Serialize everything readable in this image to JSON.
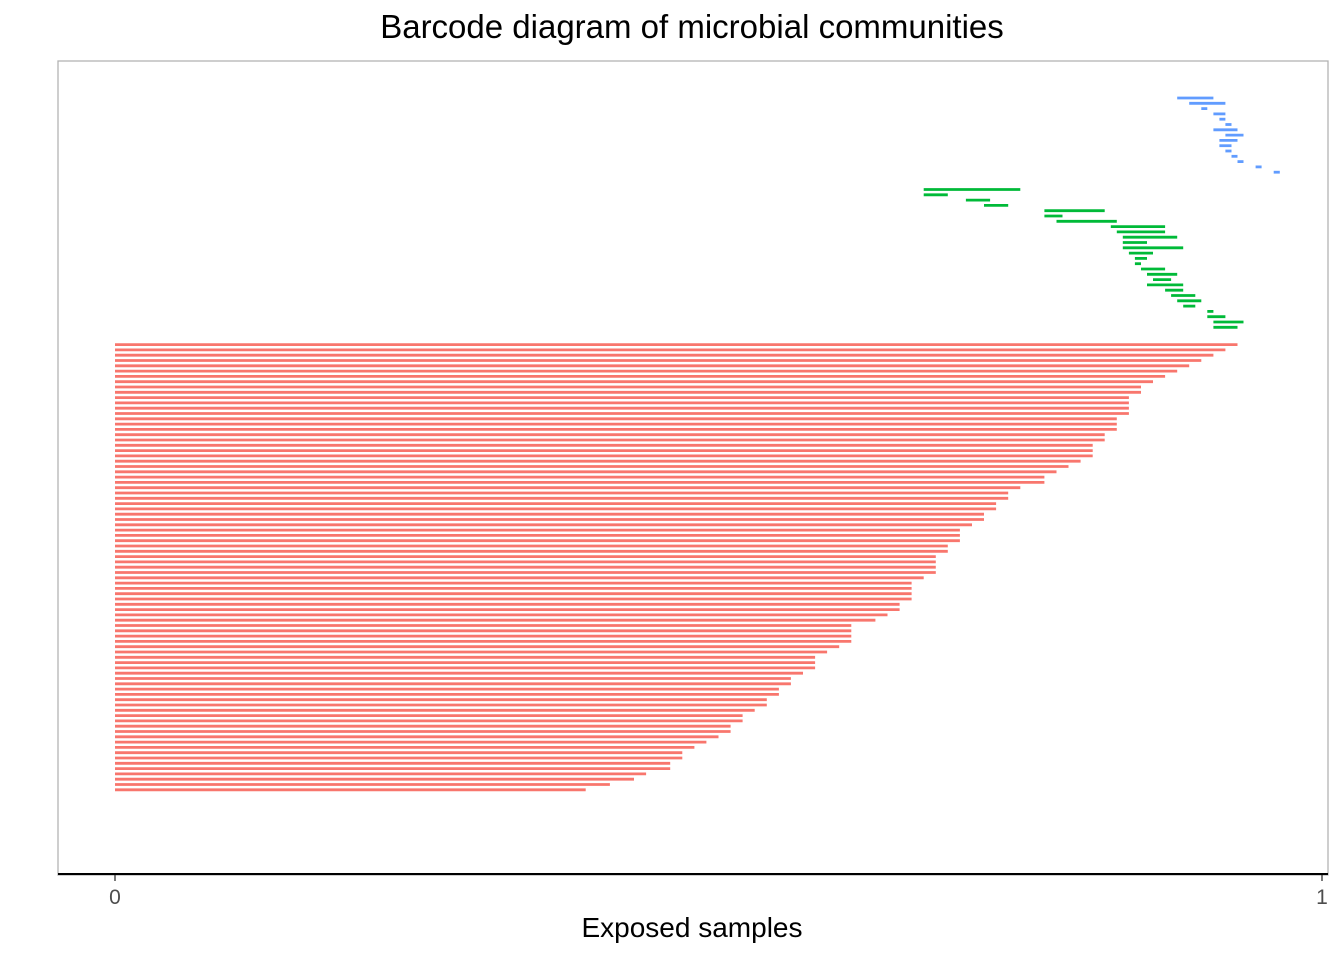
{
  "chart_data": {
    "type": "barcode",
    "title": "Barcode diagram of microbial communities",
    "xlabel": "Exposed samples",
    "ylabel": "",
    "xlim": [
      0,
      1
    ],
    "x_ticks": [
      {
        "value": 0,
        "label": "0"
      },
      {
        "value": 1,
        "label": "1"
      }
    ],
    "legend": "none",
    "grid": false,
    "series": [
      {
        "color": "#619cff",
        "segments": [
          [
            0.88,
            0.91
          ],
          [
            0.89,
            0.92
          ],
          [
            0.9,
            0.905
          ],
          [
            0.91,
            0.92
          ],
          [
            0.915,
            0.92
          ],
          [
            0.92,
            0.925
          ],
          [
            0.91,
            0.93
          ],
          [
            0.92,
            0.935
          ],
          [
            0.915,
            0.93
          ],
          [
            0.915,
            0.925
          ],
          [
            0.92,
            0.925
          ],
          [
            0.925,
            0.93
          ],
          [
            0.93,
            0.935
          ],
          [
            0.945,
            0.95
          ],
          [
            0.96,
            0.965
          ]
        ]
      },
      {
        "color": "#00ba38",
        "segments": [
          [
            0.67,
            0.75
          ],
          [
            0.67,
            0.69
          ],
          [
            0.705,
            0.725
          ],
          [
            0.72,
            0.74
          ],
          [
            0.77,
            0.82
          ],
          [
            0.77,
            0.785
          ],
          [
            0.78,
            0.83
          ],
          [
            0.825,
            0.87
          ],
          [
            0.83,
            0.87
          ],
          [
            0.835,
            0.88
          ],
          [
            0.835,
            0.855
          ],
          [
            0.835,
            0.885
          ],
          [
            0.84,
            0.86
          ],
          [
            0.845,
            0.855
          ],
          [
            0.845,
            0.85
          ],
          [
            0.85,
            0.87
          ],
          [
            0.855,
            0.88
          ],
          [
            0.86,
            0.875
          ],
          [
            0.855,
            0.885
          ],
          [
            0.87,
            0.885
          ],
          [
            0.875,
            0.895
          ],
          [
            0.88,
            0.9
          ],
          [
            0.885,
            0.895
          ],
          [
            0.905,
            0.91
          ],
          [
            0.905,
            0.92
          ],
          [
            0.91,
            0.935
          ],
          [
            0.91,
            0.93
          ]
        ]
      },
      {
        "color": "#f8766d",
        "values": [
          0.93,
          0.92,
          0.91,
          0.9,
          0.89,
          0.88,
          0.87,
          0.86,
          0.85,
          0.85,
          0.84,
          0.84,
          0.84,
          0.84,
          0.83,
          0.83,
          0.83,
          0.82,
          0.82,
          0.81,
          0.81,
          0.81,
          0.8,
          0.79,
          0.78,
          0.77,
          0.77,
          0.75,
          0.74,
          0.74,
          0.73,
          0.73,
          0.72,
          0.72,
          0.71,
          0.7,
          0.7,
          0.7,
          0.69,
          0.69,
          0.68,
          0.68,
          0.68,
          0.68,
          0.67,
          0.66,
          0.66,
          0.66,
          0.66,
          0.65,
          0.65,
          0.64,
          0.63,
          0.61,
          0.61,
          0.61,
          0.61,
          0.6,
          0.59,
          0.58,
          0.58,
          0.58,
          0.57,
          0.56,
          0.56,
          0.55,
          0.55,
          0.54,
          0.54,
          0.53,
          0.52,
          0.52,
          0.51,
          0.51,
          0.5,
          0.49,
          0.48,
          0.47,
          0.47,
          0.46,
          0.46,
          0.44,
          0.43,
          0.41,
          0.39
        ]
      }
    ]
  }
}
